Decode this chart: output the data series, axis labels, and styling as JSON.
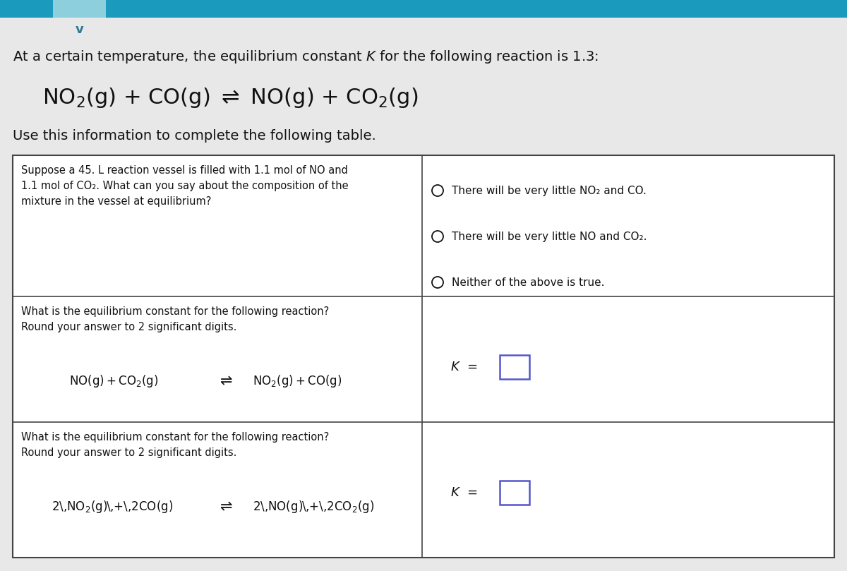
{
  "bg_color": "#d4d4d4",
  "header_bg": "#1a9bbd",
  "header_tab_bg": "#8ecfde",
  "white": "#ffffff",
  "black": "#111111",
  "border_color": "#444444",
  "input_box_color": "#5555cc",
  "title_line": "At a certain temperature, the equilibrium constant $K$ for the following reaction is 1.3:",
  "main_reaction": "NO$_2$(g) + CO(g) $\\rightleftharpoons$ NO(g) + CO$_2$(g)",
  "table_intro": "Use this information to complete the following table.",
  "row1_q": "Suppose a 45. L reaction vessel is filled with 1.1 mol of NO and\n1.1 mol of CO₂. What can you say about the composition of the\nmixture in the vessel at equilibrium?",
  "opt1": "There will be very little NO₂ and CO.",
  "opt2": "There will be very little NO and CO₂.",
  "opt3": "Neither of the above is true.",
  "row2_q1": "What is the equilibrium constant for the following reaction?",
  "row2_q2": "Round your answer to 2 significant digits.",
  "row2_rxn_left": "NO(g) + CO$_2$(g)",
  "row2_rxn_right": "NO$_2$(g) + CO(g)",
  "row3_q1": "What is the equilibrium constant for the following reaction?",
  "row3_q2": "Round your answer to 2 significant digits.",
  "row3_rxn_left": "2 NO$_2$(g) + 2CO(g)",
  "row3_rxn_right": "2 NO(g) + 2CO$_2$(g)"
}
